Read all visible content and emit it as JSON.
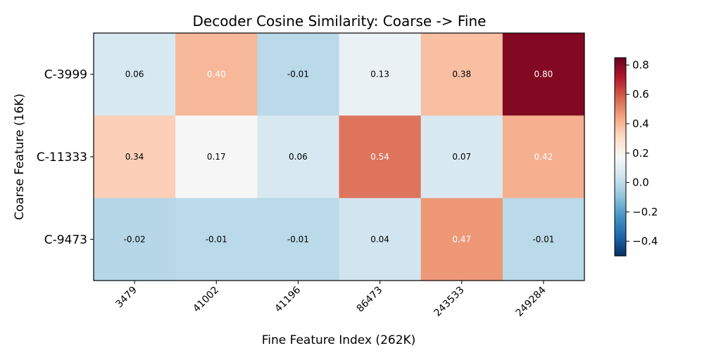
{
  "chart_data": {
    "type": "heatmap",
    "title": "Decoder Cosine Similarity: Coarse -> Fine",
    "xlabel": "Fine Feature Index (262K)",
    "ylabel": "Coarse Feature (16K)",
    "x_categories": [
      "3479",
      "41002",
      "41196",
      "86473",
      "243533",
      "249284"
    ],
    "y_categories": [
      "C-3999",
      "C-11333",
      "C-9473"
    ],
    "values": [
      [
        0.06,
        0.4,
        -0.01,
        0.13,
        0.38,
        0.8
      ],
      [
        0.34,
        0.17,
        0.06,
        0.54,
        0.07,
        0.42
      ],
      [
        -0.02,
        -0.01,
        -0.01,
        0.04,
        0.47,
        -0.01
      ]
    ],
    "value_labels": [
      [
        "0.06",
        "0.40",
        "-0.01",
        "0.13",
        "0.38",
        "0.80"
      ],
      [
        "0.34",
        "0.17",
        "0.06",
        "0.54",
        "0.07",
        "0.42"
      ],
      [
        "-0.02",
        "-0.01",
        "-0.01",
        "0.04",
        "0.47",
        "-0.01"
      ]
    ],
    "colormap": "RdBu_r",
    "color_range": [
      -0.5,
      0.85
    ],
    "colorbar_ticks": [
      -0.4,
      -0.2,
      0.0,
      0.2,
      0.4,
      0.6,
      0.8
    ],
    "colorbar_tick_labels": [
      "−0.4",
      "−0.2",
      "0.0",
      "0.2",
      "0.4",
      "0.6",
      "0.8"
    ],
    "colorbar": true,
    "grid": false
  }
}
